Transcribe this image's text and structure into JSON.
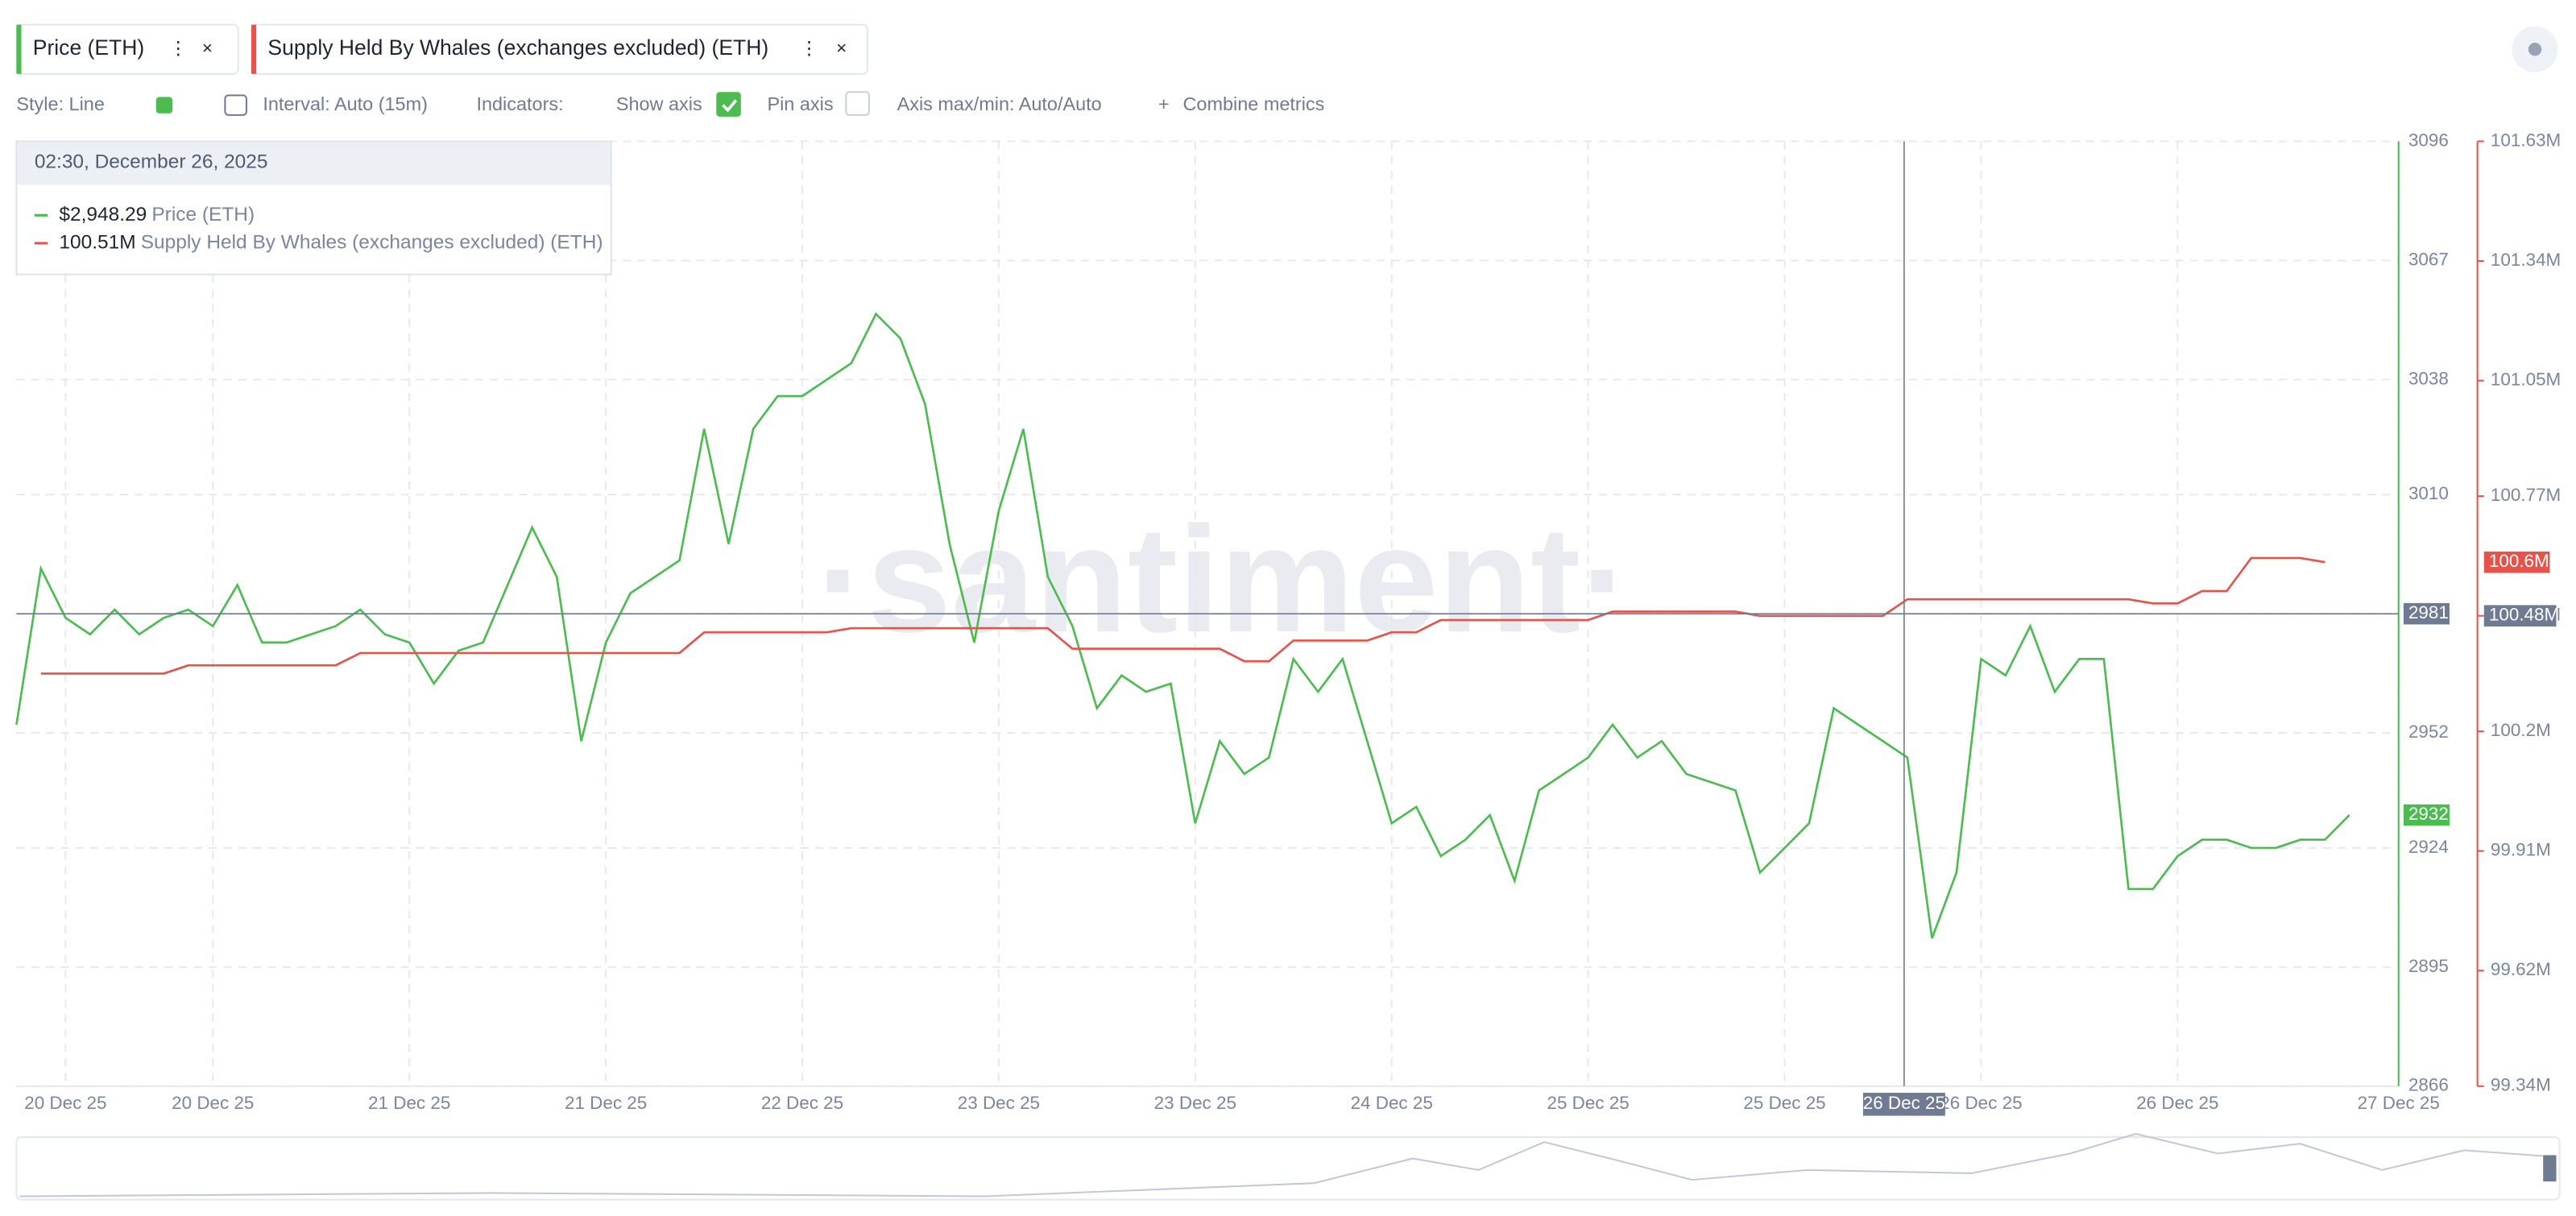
{
  "chart_data": {
    "type": "line",
    "toolbar": [
      "Style: Line",
      "Interval: Auto (15m)",
      "Indicators:",
      "Show axis",
      "Pin axis",
      "Axis max/min: Auto/Auto",
      "Combine metrics"
    ],
    "watermark": "·santiment·",
    "categories": [
      null,
      null,
      "20 Dec 25",
      null,
      null,
      null,
      null,
      null,
      "20 Dec 25",
      null,
      null,
      null,
      null,
      null,
      null,
      null,
      "21 Dec 25",
      null,
      null,
      null,
      null,
      null,
      null,
      null,
      "21 Dec 25",
      null,
      null,
      null,
      null,
      null,
      null,
      null,
      "22 Dec 25",
      null,
      null,
      null,
      null,
      null,
      null,
      null,
      "23 Dec 25",
      null,
      null,
      null,
      null,
      null,
      null,
      null,
      "23 Dec 25",
      null,
      null,
      null,
      null,
      null,
      null,
      null,
      "24 Dec 25",
      null,
      null,
      null,
      null,
      null,
      null,
      null,
      "25 Dec 25",
      null,
      null,
      null,
      null,
      null,
      null,
      null,
      "25 Dec 25",
      null,
      null,
      null,
      null,
      null,
      null,
      null,
      "26 Dec 25",
      null,
      null,
      null,
      null,
      null,
      null,
      null,
      "26 Dec 25",
      null,
      null,
      null,
      null,
      null,
      null,
      null,
      null,
      "27 Dec 25"
    ],
    "series": [
      {
        "name": "Price (ETH)",
        "color": "#4cbc50",
        "axis": "y",
        "last_label": 2932,
        "values": [
          2954,
          2992,
          2980,
          2976,
          2982,
          2976,
          2980,
          2982,
          2978,
          2988,
          2974,
          2974,
          2976,
          2978,
          2982,
          2976,
          2974,
          2964,
          2972,
          2974,
          2988,
          3002,
          2990,
          2950,
          2974,
          2986,
          2990,
          2994,
          3026,
          2998,
          3026,
          3034,
          3034,
          3038,
          3042,
          3054,
          3048,
          3032,
          2998,
          2974,
          3006,
          3026,
          2990,
          2978,
          2958,
          2966,
          2962,
          2964,
          2930,
          2950,
          2942,
          2946,
          2970,
          2962,
          2970,
          2950,
          2930,
          2934,
          2922,
          2926,
          2932,
          2916,
          2938,
          2942,
          2946,
          2954,
          2946,
          2950,
          2942,
          2940,
          2938,
          2918,
          2924,
          2930,
          2958,
          2954,
          2950,
          2946,
          2902,
          2918,
          2970,
          2966,
          2978,
          2962,
          2970,
          2970,
          2914,
          2914,
          2922,
          2926,
          2926,
          2924,
          2924,
          2926,
          2926,
          2932,
          null,
          null
        ]
      },
      {
        "name": "Supply Held By Whales (exchanges excluded) (ETH)",
        "color": "#e5534b",
        "axis": "y2",
        "last_label": "100.6M",
        "values": [
          null,
          100.34,
          100.34,
          100.34,
          100.34,
          100.34,
          100.34,
          100.36,
          100.36,
          100.36,
          100.36,
          100.36,
          100.36,
          100.36,
          100.39,
          100.39,
          100.39,
          100.39,
          100.39,
          100.39,
          100.39,
          100.39,
          100.39,
          100.39,
          100.39,
          100.39,
          100.39,
          100.39,
          100.44,
          100.44,
          100.44,
          100.44,
          100.44,
          100.44,
          100.45,
          100.45,
          100.45,
          100.45,
          100.45,
          100.45,
          100.45,
          100.45,
          100.45,
          100.4,
          100.4,
          100.4,
          100.4,
          100.4,
          100.4,
          100.4,
          100.37,
          100.37,
          100.42,
          100.42,
          100.42,
          100.42,
          100.44,
          100.44,
          100.47,
          100.47,
          100.47,
          100.47,
          100.47,
          100.47,
          100.47,
          100.49,
          100.49,
          100.49,
          100.49,
          100.49,
          100.49,
          100.48,
          100.48,
          100.48,
          100.48,
          100.48,
          100.48,
          100.52,
          100.52,
          100.52,
          100.52,
          100.52,
          100.52,
          100.52,
          100.52,
          100.52,
          100.52,
          100.51,
          100.51,
          100.54,
          100.54,
          100.62,
          100.62,
          100.62,
          100.61,
          null,
          null,
          null
        ]
      }
    ],
    "ylim": [
      2866,
      3096
    ],
    "yticks": [
      2866,
      2895,
      2924,
      2952,
      2981,
      3010,
      3038,
      3067,
      3096
    ],
    "y2lim": [
      99.34,
      101.63
    ],
    "y2ticks": [
      {
        "value": 99.34,
        "label": "99.34M"
      },
      {
        "value": 99.62,
        "label": "99.62M"
      },
      {
        "value": 99.91,
        "label": "99.91M"
      },
      {
        "value": 100.2,
        "label": "100.2M"
      },
      {
        "value": 100.48,
        "label": "100.48M"
      },
      {
        "value": 100.77,
        "label": "100.77M"
      },
      {
        "value": 101.05,
        "label": "101.05M"
      },
      {
        "value": 101.34,
        "label": "101.34M"
      },
      {
        "value": 101.63,
        "label": "101.63M"
      }
    ],
    "grid": true,
    "crosshair": {
      "index_label": "26 Dec 25",
      "y": 2981,
      "y2": {
        "value": 100.48,
        "label": "100.48M"
      }
    },
    "tooltip": {
      "time": "02:30, December 26, 2025",
      "values": [
        "$2,948.29",
        "100.51M"
      ]
    }
  }
}
